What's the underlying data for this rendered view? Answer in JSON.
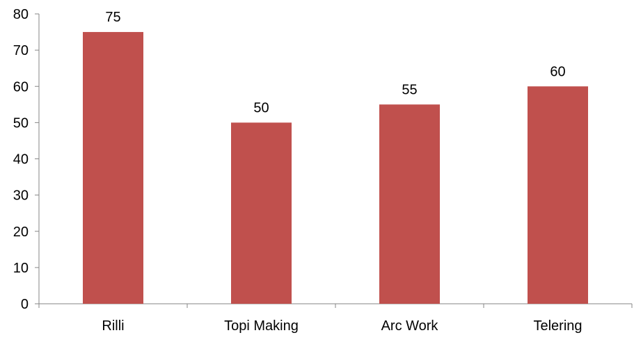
{
  "chart_data": {
    "type": "bar",
    "categories": [
      "Rilli",
      "Topi Making",
      "Arc Work",
      "Telering"
    ],
    "values": [
      75,
      50,
      55,
      60
    ],
    "data_labels": [
      "75",
      "50",
      "55",
      "60"
    ],
    "y_ticks": [
      0,
      10,
      20,
      30,
      40,
      50,
      60,
      70,
      80
    ],
    "ylim": [
      0,
      80
    ],
    "title": "",
    "xlabel": "",
    "ylabel": "",
    "bar_color": "#c0504d",
    "axis_color": "#868686",
    "grid": false,
    "legend": "none"
  }
}
